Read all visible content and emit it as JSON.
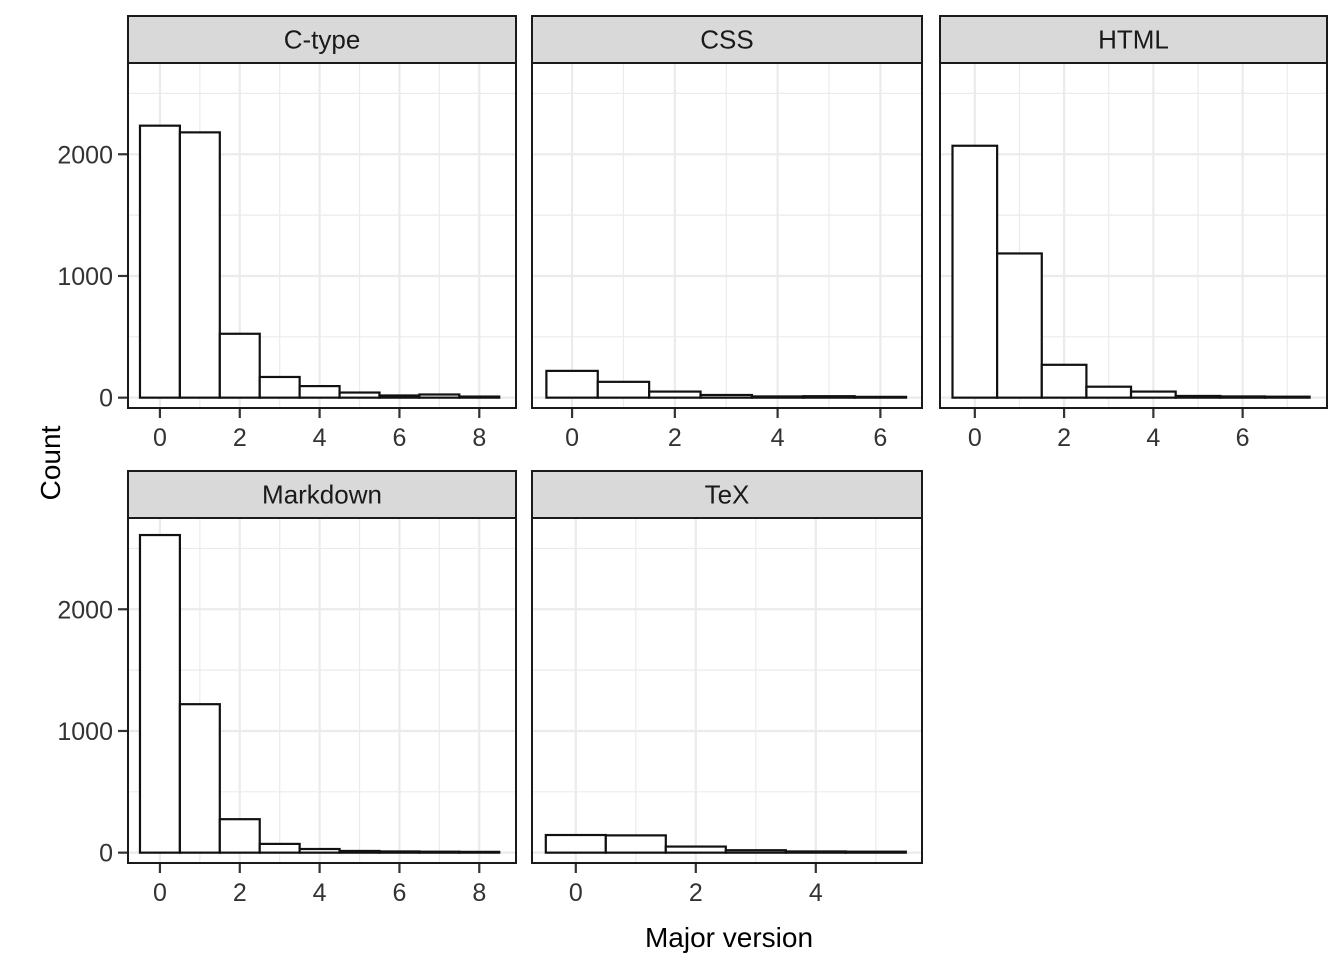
{
  "chart_data": {
    "type": "bar",
    "subtype": "faceted-histogram",
    "title": "",
    "xlabel": "Major version",
    "ylabel": "Count",
    "grid": true,
    "legend": "none",
    "y_axis": {
      "ticks": [
        0,
        1000,
        2000
      ],
      "tick_labels": [
        "0",
        "1000",
        "2000"
      ],
      "minor_ticks": [
        500,
        1500,
        2500
      ],
      "ylim": [
        -85,
        2750
      ]
    },
    "facets": [
      {
        "label": "C-type",
        "row": 0,
        "col": 0,
        "bin_centers": [
          0,
          1,
          2,
          3,
          4,
          5,
          6,
          7,
          8
        ],
        "counts": [
          2235,
          2180,
          525,
          170,
          95,
          42,
          18,
          26,
          9
        ],
        "x_ticks": [
          0,
          2,
          4,
          6,
          8
        ],
        "x_minor_ticks": [
          1,
          3,
          5,
          7
        ],
        "xlim": [
          -0.8,
          8.92
        ]
      },
      {
        "label": "CSS",
        "row": 0,
        "col": 1,
        "bin_centers": [
          0,
          1,
          2,
          3,
          4,
          5,
          6
        ],
        "counts": [
          220,
          130,
          50,
          22,
          10,
          12,
          6
        ],
        "x_ticks": [
          0,
          2,
          4,
          6
        ],
        "x_minor_ticks": [
          1,
          3,
          5
        ],
        "xlim": [
          -0.78,
          6.81
        ]
      },
      {
        "label": "HTML",
        "row": 0,
        "col": 2,
        "bin_centers": [
          0,
          1,
          2,
          3,
          4,
          5,
          6,
          7
        ],
        "counts": [
          2070,
          1185,
          270,
          90,
          50,
          14,
          10,
          8
        ],
        "x_ticks": [
          0,
          2,
          4,
          6
        ],
        "x_minor_ticks": [
          1,
          3,
          5,
          7
        ],
        "xlim": [
          -0.78,
          7.89
        ]
      },
      {
        "label": "Markdown",
        "row": 1,
        "col": 0,
        "bin_centers": [
          0,
          1,
          2,
          3,
          4,
          5,
          6,
          7,
          8
        ],
        "counts": [
          2610,
          1220,
          275,
          72,
          30,
          14,
          10,
          8,
          6
        ],
        "x_ticks": [
          0,
          2,
          4,
          6,
          8
        ],
        "x_minor_ticks": [
          1,
          3,
          5,
          7
        ],
        "xlim": [
          -0.8,
          8.92
        ]
      },
      {
        "label": "TeX",
        "row": 1,
        "col": 1,
        "bin_centers": [
          0,
          1,
          2,
          3,
          4,
          5
        ],
        "counts": [
          145,
          142,
          50,
          20,
          10,
          8
        ],
        "x_ticks": [
          0,
          2,
          4
        ],
        "x_minor_ticks": [
          1,
          3,
          5
        ],
        "xlim": [
          -0.73,
          5.77
        ]
      }
    ],
    "style": {
      "strip_fill": "#D9D9D9",
      "strip_text": "#1A1A1A",
      "panel_fill": "#FFFFFF",
      "gridline": "#EBEBEB",
      "bar_fill": "#FFFFFF",
      "bar_stroke": "#111111",
      "panel_border": "#1A1A1A",
      "tick_mark": "#333333",
      "tick_label": "#333333",
      "axis_title": "#000000"
    }
  }
}
